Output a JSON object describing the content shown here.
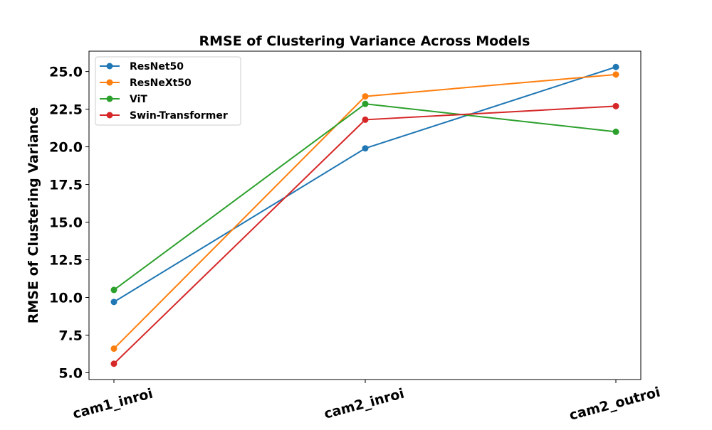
{
  "chart_data": {
    "type": "line",
    "title": "RMSE of Clustering Variance Across Models",
    "xlabel": "",
    "ylabel": "RMSE of Clustering Variance",
    "categories": [
      "cam1_inroi",
      "cam2_inroi",
      "cam2_outroi"
    ],
    "ylim": [
      4.55,
      26.35
    ],
    "yticks": [
      5.0,
      7.5,
      10.0,
      12.5,
      15.0,
      17.5,
      20.0,
      22.5,
      25.0
    ],
    "ytick_labels": [
      "5.0",
      "7.5",
      "10.0",
      "12.5",
      "15.0",
      "17.5",
      "20.0",
      "22.5",
      "25.0"
    ],
    "grid": false,
    "legend": "top-left",
    "series": [
      {
        "name": "ResNet50",
        "color": "#1f77b4",
        "values": [
          9.7,
          19.9,
          25.3
        ]
      },
      {
        "name": "ResNeXt50",
        "color": "#ff7f0e",
        "values": [
          6.6,
          23.35,
          24.8
        ]
      },
      {
        "name": "ViT",
        "color": "#2ca02c",
        "values": [
          10.5,
          22.85,
          21.0
        ]
      },
      {
        "name": "Swin-Transformer",
        "color": "#d62728",
        "values": [
          5.6,
          21.8,
          22.7
        ]
      }
    ]
  }
}
